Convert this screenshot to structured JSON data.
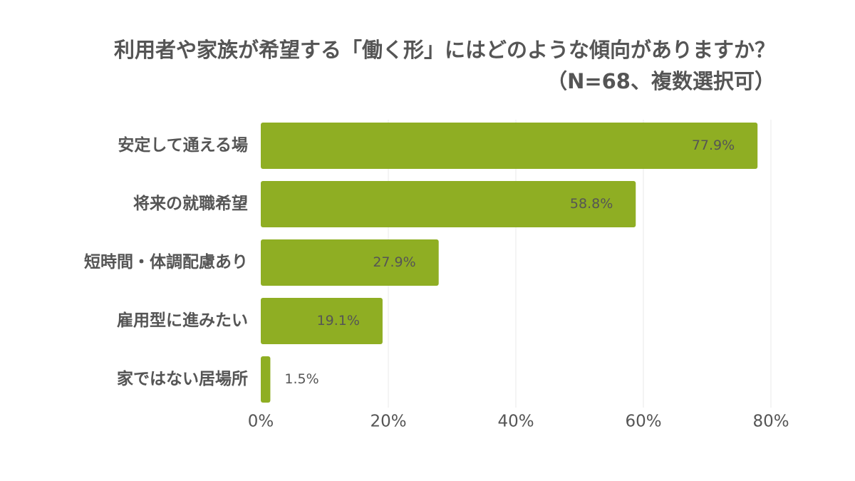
{
  "chart_data": {
    "type": "bar",
    "orientation": "horizontal",
    "title": "利用者や家族が希望する「働く形」にはどのような傾向がありますか？",
    "subtitle": "（N=68、複数選択可）",
    "categories": [
      "安定して通える場",
      "将来の就職希望",
      "短時間・体調配慮あり",
      "雇用型に進みたい",
      "家ではない居場所"
    ],
    "values": [
      77.9,
      58.8,
      27.9,
      19.1,
      1.5
    ],
    "data_labels": [
      "77.9%",
      "58.8%",
      "27.9%",
      "19.1%",
      "1.5%"
    ],
    "xlim": [
      0,
      80
    ],
    "x_ticks": [
      0,
      20,
      40,
      60,
      80
    ],
    "x_tick_labels": [
      "0%",
      "20%",
      "40%",
      "60%",
      "80%"
    ],
    "xlabel": "",
    "ylabel": "",
    "grid": "vertical",
    "legend": "none",
    "bar_color": "#8fae23",
    "grid_color": "#e8e8e8",
    "text_color": "#555555"
  }
}
